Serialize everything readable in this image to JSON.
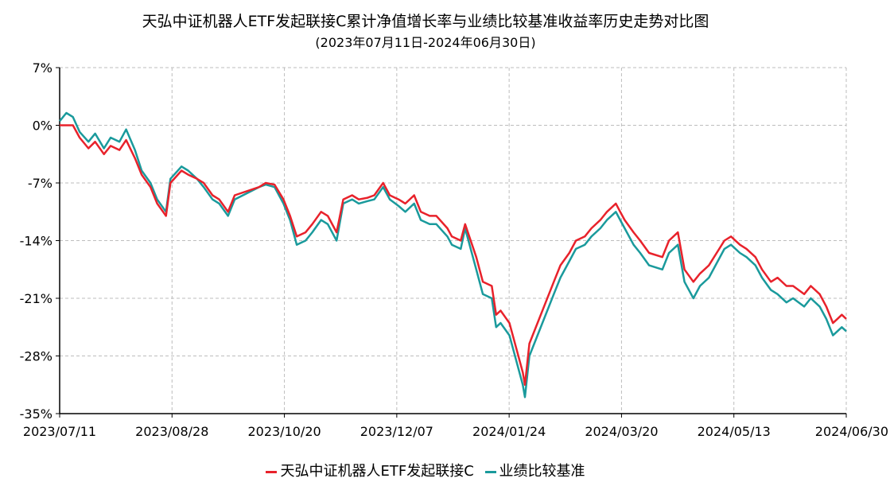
{
  "chart_data": {
    "type": "line",
    "title": "天弘中证机器人ETF发起联接C累计净值增长率与业绩比较基准收益率历史走势对比图",
    "subtitle": "(2023年07月11日-2024年06月30日)",
    "xlabel": "",
    "ylabel": "",
    "x_ticks": [
      "2023/07/11",
      "2023/08/28",
      "2023/10/20",
      "2023/12/07",
      "2024/01/24",
      "2024/03/20",
      "2024/05/13",
      "2024/06/30"
    ],
    "y_ticks": [
      "7%",
      "0%",
      "-7%",
      "-14%",
      "-21%",
      "-28%",
      "-35%"
    ],
    "ylim": [
      -35,
      7
    ],
    "xlim": [
      "2023-07-11",
      "2024-06-30"
    ],
    "grid": true,
    "legend_position": "bottom",
    "series": [
      {
        "name": "天弘中证机器人ETF发起联接C",
        "color": "#e8222b",
        "points": [
          [
            "2023-07-11",
            0.0
          ],
          [
            "2023-07-14",
            0.0
          ],
          [
            "2023-07-17",
            0.0
          ],
          [
            "2023-07-20",
            -1.5
          ],
          [
            "2023-07-24",
            -2.8
          ],
          [
            "2023-07-27",
            -2.0
          ],
          [
            "2023-07-31",
            -3.5
          ],
          [
            "2023-08-03",
            -2.5
          ],
          [
            "2023-08-07",
            -3.0
          ],
          [
            "2023-08-10",
            -1.8
          ],
          [
            "2023-08-14",
            -4.0
          ],
          [
            "2023-08-17",
            -6.0
          ],
          [
            "2023-08-21",
            -7.5
          ],
          [
            "2023-08-24",
            -9.5
          ],
          [
            "2023-08-28",
            -11.0
          ],
          [
            "2023-08-30",
            -7.0
          ],
          [
            "2023-09-04",
            -5.5
          ],
          [
            "2023-09-07",
            -6.0
          ],
          [
            "2023-09-11",
            -6.5
          ],
          [
            "2023-09-14",
            -7.0
          ],
          [
            "2023-09-18",
            -8.5
          ],
          [
            "2023-09-21",
            -9.0
          ],
          [
            "2023-09-25",
            -10.5
          ],
          [
            "2023-09-28",
            -8.5
          ],
          [
            "2023-10-09",
            -7.5
          ],
          [
            "2023-10-12",
            -7.0
          ],
          [
            "2023-10-16",
            -7.2
          ],
          [
            "2023-10-20",
            -9.0
          ],
          [
            "2023-10-23",
            -11.0
          ],
          [
            "2023-10-26",
            -13.5
          ],
          [
            "2023-10-30",
            -13.0
          ],
          [
            "2023-11-02",
            -12.0
          ],
          [
            "2023-11-06",
            -10.5
          ],
          [
            "2023-11-09",
            -11.0
          ],
          [
            "2023-11-13",
            -13.0
          ],
          [
            "2023-11-16",
            -9.0
          ],
          [
            "2023-11-20",
            -8.5
          ],
          [
            "2023-11-23",
            -9.0
          ],
          [
            "2023-11-27",
            -8.8
          ],
          [
            "2023-11-30",
            -8.5
          ],
          [
            "2023-12-04",
            -7.0
          ],
          [
            "2023-12-07",
            -8.5
          ],
          [
            "2023-12-11",
            -9.0
          ],
          [
            "2023-12-14",
            -9.5
          ],
          [
            "2023-12-18",
            -8.5
          ],
          [
            "2023-12-21",
            -10.5
          ],
          [
            "2023-12-25",
            -11.0
          ],
          [
            "2023-12-28",
            -11.0
          ],
          [
            "2024-01-02",
            -12.5
          ],
          [
            "2024-01-04",
            -13.5
          ],
          [
            "2024-01-08",
            -14.0
          ],
          [
            "2024-01-10",
            -12.0
          ],
          [
            "2024-01-15",
            -16.0
          ],
          [
            "2024-01-18",
            -19.0
          ],
          [
            "2024-01-22",
            -19.5
          ],
          [
            "2024-01-24",
            -23.0
          ],
          [
            "2024-01-26",
            -22.5
          ],
          [
            "2024-01-30",
            -24.0
          ],
          [
            "2024-02-02",
            -27.0
          ],
          [
            "2024-02-05",
            -30.0
          ],
          [
            "2024-02-06",
            -31.5
          ],
          [
            "2024-02-07",
            -29.0
          ],
          [
            "2024-02-08",
            -26.5
          ],
          [
            "2024-02-19",
            -19.0
          ],
          [
            "2024-02-22",
            -17.0
          ],
          [
            "2024-02-26",
            -15.5
          ],
          [
            "2024-02-29",
            -14.0
          ],
          [
            "2024-03-04",
            -13.5
          ],
          [
            "2024-03-07",
            -12.5
          ],
          [
            "2024-03-11",
            -11.5
          ],
          [
            "2024-03-14",
            -10.5
          ],
          [
            "2024-03-18",
            -9.5
          ],
          [
            "2024-03-20",
            -10.5
          ],
          [
            "2024-03-22",
            -11.5
          ],
          [
            "2024-03-26",
            -13.0
          ],
          [
            "2024-03-29",
            -14.0
          ],
          [
            "2024-04-02",
            -15.5
          ],
          [
            "2024-04-08",
            -16.0
          ],
          [
            "2024-04-11",
            -14.0
          ],
          [
            "2024-04-15",
            -13.0
          ],
          [
            "2024-04-18",
            -17.5
          ],
          [
            "2024-04-22",
            -19.0
          ],
          [
            "2024-04-25",
            -18.0
          ],
          [
            "2024-04-29",
            -17.0
          ],
          [
            "2024-05-06",
            -14.0
          ],
          [
            "2024-05-09",
            -13.5
          ],
          [
            "2024-05-13",
            -14.5
          ],
          [
            "2024-05-16",
            -15.0
          ],
          [
            "2024-05-20",
            -16.0
          ],
          [
            "2024-05-23",
            -17.5
          ],
          [
            "2024-05-27",
            -19.0
          ],
          [
            "2024-05-30",
            -18.5
          ],
          [
            "2024-06-03",
            -19.5
          ],
          [
            "2024-06-06",
            -19.5
          ],
          [
            "2024-06-11",
            -20.5
          ],
          [
            "2024-06-14",
            -19.5
          ],
          [
            "2024-06-18",
            -20.5
          ],
          [
            "2024-06-21",
            -22.0
          ],
          [
            "2024-06-24",
            -24.0
          ],
          [
            "2024-06-26",
            -23.5
          ],
          [
            "2024-06-28",
            -23.0
          ],
          [
            "2024-06-30",
            -23.5
          ]
        ]
      },
      {
        "name": "业绩比较基准",
        "color": "#1a9a9c",
        "points": [
          [
            "2023-07-11",
            0.5
          ],
          [
            "2023-07-14",
            1.5
          ],
          [
            "2023-07-17",
            1.0
          ],
          [
            "2023-07-20",
            -0.8
          ],
          [
            "2023-07-24",
            -2.0
          ],
          [
            "2023-07-27",
            -1.0
          ],
          [
            "2023-07-31",
            -2.8
          ],
          [
            "2023-08-03",
            -1.5
          ],
          [
            "2023-08-07",
            -2.0
          ],
          [
            "2023-08-10",
            -0.5
          ],
          [
            "2023-08-14",
            -3.0
          ],
          [
            "2023-08-17",
            -5.5
          ],
          [
            "2023-08-21",
            -7.0
          ],
          [
            "2023-08-24",
            -9.0
          ],
          [
            "2023-08-28",
            -10.5
          ],
          [
            "2023-08-30",
            -6.5
          ],
          [
            "2023-09-04",
            -5.0
          ],
          [
            "2023-09-07",
            -5.5
          ],
          [
            "2023-09-11",
            -6.5
          ],
          [
            "2023-09-14",
            -7.5
          ],
          [
            "2023-09-18",
            -9.0
          ],
          [
            "2023-09-21",
            -9.5
          ],
          [
            "2023-09-25",
            -11.0
          ],
          [
            "2023-09-28",
            -9.0
          ],
          [
            "2023-10-09",
            -7.5
          ],
          [
            "2023-10-12",
            -7.2
          ],
          [
            "2023-10-16",
            -7.5
          ],
          [
            "2023-10-20",
            -9.5
          ],
          [
            "2023-10-23",
            -11.5
          ],
          [
            "2023-10-26",
            -14.5
          ],
          [
            "2023-10-30",
            -14.0
          ],
          [
            "2023-11-02",
            -13.0
          ],
          [
            "2023-11-06",
            -11.5
          ],
          [
            "2023-11-09",
            -12.0
          ],
          [
            "2023-11-13",
            -14.0
          ],
          [
            "2023-11-16",
            -9.5
          ],
          [
            "2023-11-20",
            -9.0
          ],
          [
            "2023-11-23",
            -9.5
          ],
          [
            "2023-11-27",
            -9.2
          ],
          [
            "2023-11-30",
            -9.0
          ],
          [
            "2023-12-04",
            -7.5
          ],
          [
            "2023-12-07",
            -9.0
          ],
          [
            "2023-12-11",
            -9.8
          ],
          [
            "2023-12-14",
            -10.5
          ],
          [
            "2023-12-18",
            -9.5
          ],
          [
            "2023-12-21",
            -11.5
          ],
          [
            "2023-12-25",
            -12.0
          ],
          [
            "2023-12-28",
            -12.0
          ],
          [
            "2024-01-02",
            -13.5
          ],
          [
            "2024-01-04",
            -14.5
          ],
          [
            "2024-01-08",
            -15.0
          ],
          [
            "2024-01-10",
            -12.5
          ],
          [
            "2024-01-15",
            -17.5
          ],
          [
            "2024-01-18",
            -20.5
          ],
          [
            "2024-01-22",
            -21.0
          ],
          [
            "2024-01-24",
            -24.5
          ],
          [
            "2024-01-26",
            -24.0
          ],
          [
            "2024-01-30",
            -25.5
          ],
          [
            "2024-02-02",
            -28.5
          ],
          [
            "2024-02-05",
            -31.5
          ],
          [
            "2024-02-06",
            -33.0
          ],
          [
            "2024-02-07",
            -30.5
          ],
          [
            "2024-02-08",
            -28.0
          ],
          [
            "2024-02-19",
            -20.5
          ],
          [
            "2024-02-22",
            -18.5
          ],
          [
            "2024-02-26",
            -16.5
          ],
          [
            "2024-02-29",
            -15.0
          ],
          [
            "2024-03-04",
            -14.5
          ],
          [
            "2024-03-07",
            -13.5
          ],
          [
            "2024-03-11",
            -12.5
          ],
          [
            "2024-03-14",
            -11.5
          ],
          [
            "2024-03-18",
            -10.5
          ],
          [
            "2024-03-20",
            -11.5
          ],
          [
            "2024-03-22",
            -12.5
          ],
          [
            "2024-03-26",
            -14.5
          ],
          [
            "2024-03-29",
            -15.5
          ],
          [
            "2024-04-02",
            -17.0
          ],
          [
            "2024-04-08",
            -17.5
          ],
          [
            "2024-04-11",
            -15.5
          ],
          [
            "2024-04-15",
            -14.5
          ],
          [
            "2024-04-18",
            -19.0
          ],
          [
            "2024-04-22",
            -21.0
          ],
          [
            "2024-04-25",
            -19.5
          ],
          [
            "2024-04-29",
            -18.5
          ],
          [
            "2024-05-06",
            -15.0
          ],
          [
            "2024-05-09",
            -14.5
          ],
          [
            "2024-05-13",
            -15.5
          ],
          [
            "2024-05-16",
            -16.0
          ],
          [
            "2024-05-20",
            -17.0
          ],
          [
            "2024-05-23",
            -18.5
          ],
          [
            "2024-05-27",
            -20.0
          ],
          [
            "2024-05-30",
            -20.5
          ],
          [
            "2024-06-03",
            -21.5
          ],
          [
            "2024-06-06",
            -21.0
          ],
          [
            "2024-06-11",
            -22.0
          ],
          [
            "2024-06-14",
            -21.0
          ],
          [
            "2024-06-18",
            -22.0
          ],
          [
            "2024-06-21",
            -23.5
          ],
          [
            "2024-06-24",
            -25.5
          ],
          [
            "2024-06-26",
            -25.0
          ],
          [
            "2024-06-28",
            -24.5
          ],
          [
            "2024-06-30",
            -25.0
          ]
        ]
      }
    ]
  }
}
